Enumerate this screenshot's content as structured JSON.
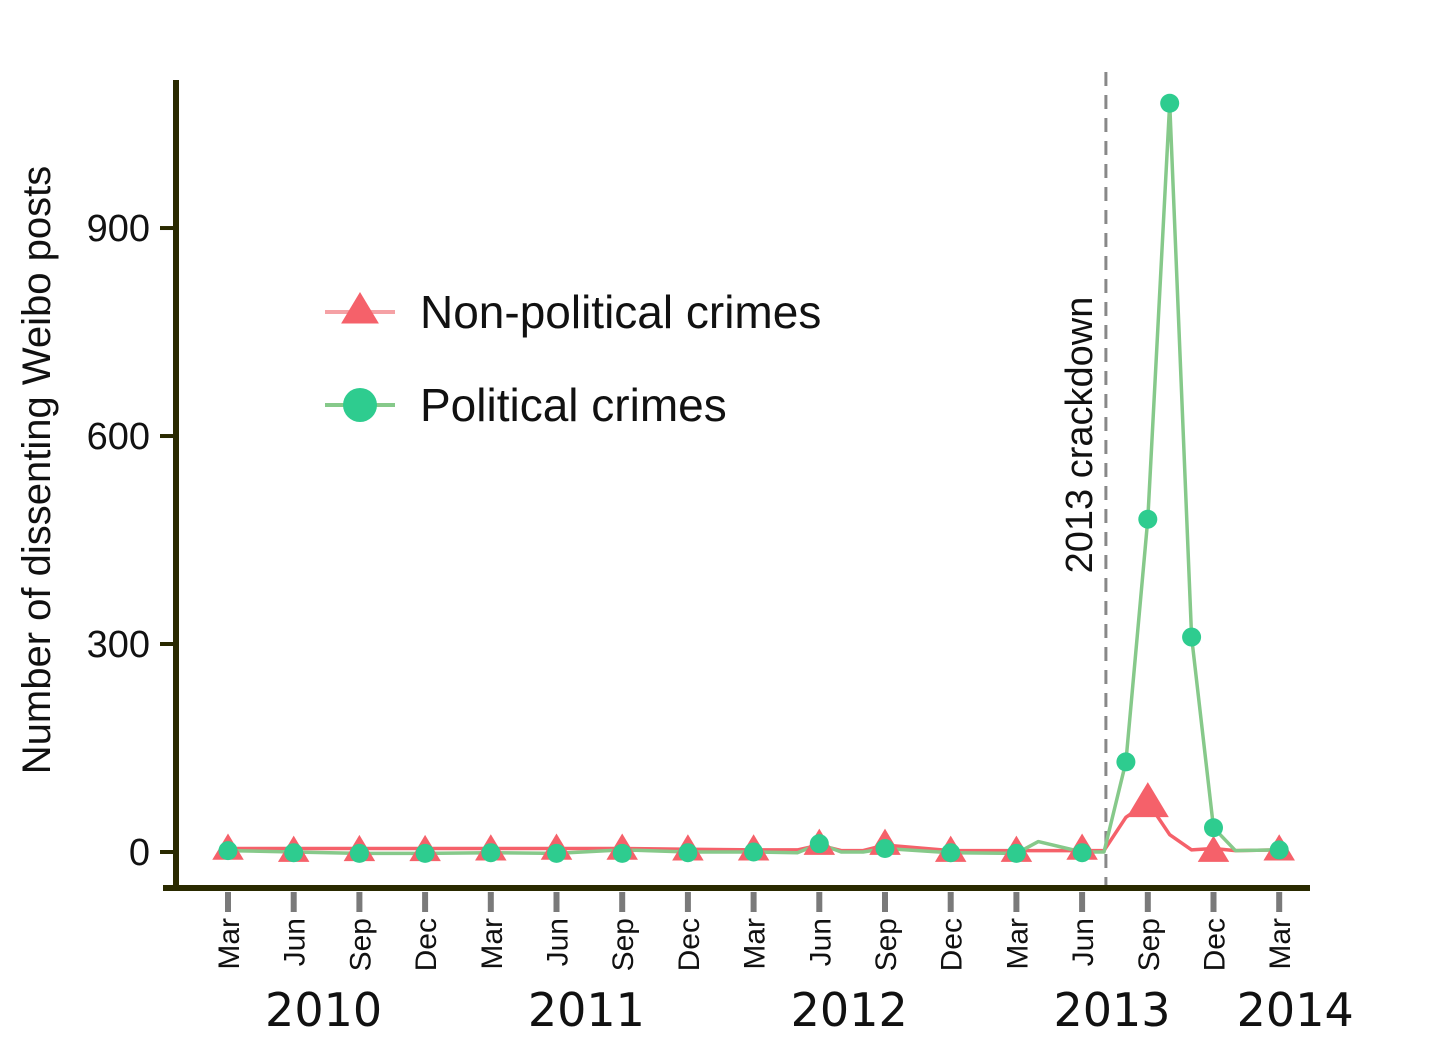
{
  "chart_data": {
    "type": "line",
    "ylabel": "Number of dissenting Weibo posts",
    "yticks": [
      0,
      300,
      600,
      900
    ],
    "ylim": [
      -50,
      1120
    ],
    "month_ticks": [
      "Mar",
      "Jun",
      "Sep",
      "Dec",
      "Mar",
      "Jun",
      "Sep",
      "Dec",
      "Mar",
      "Jun",
      "Sep",
      "Dec",
      "Mar",
      "Jun",
      "Sep",
      "Dec",
      "Mar"
    ],
    "year_labels": [
      "2010",
      "2011",
      "2012",
      "2013",
      "2014"
    ],
    "annotation": {
      "label": "2013 crackdown",
      "x": "2013-08"
    },
    "legend_position": "top-left",
    "series": [
      {
        "name": "Non-political crimes",
        "color": "#F5616A",
        "marker": "triangle",
        "x": [
          "2010-03",
          "2010-06",
          "2010-09",
          "2010-12",
          "2011-03",
          "2011-06",
          "2011-09",
          "2011-12",
          "2012-03",
          "2012-05",
          "2012-06",
          "2012-07",
          "2012-08",
          "2012-09",
          "2012-12",
          "2013-03",
          "2013-04",
          "2013-06",
          "2013-07",
          "2013-08",
          "2013-09",
          "2013-10",
          "2013-11",
          "2013-12",
          "2014-01",
          "2014-03"
        ],
        "y": [
          5,
          5,
          5,
          5,
          5,
          5,
          5,
          4,
          3,
          3,
          10,
          2,
          2,
          10,
          2,
          2,
          2,
          2,
          2,
          50,
          72,
          25,
          3,
          5,
          2,
          3
        ],
        "marker_x": [
          "2010-03",
          "2010-06",
          "2010-09",
          "2010-12",
          "2011-03",
          "2011-06",
          "2011-09",
          "2011-12",
          "2012-03",
          "2012-06",
          "2012-09",
          "2012-12",
          "2013-03",
          "2013-06",
          "2013-09",
          "2013-12",
          "2014-03"
        ],
        "marker_y": [
          5,
          2,
          3,
          3,
          4,
          5,
          5,
          4,
          4,
          12,
          12,
          2,
          2,
          5,
          72,
          2,
          4
        ]
      },
      {
        "name": "Political crimes",
        "color": "#2ECC8F",
        "line_color": "#86C98A",
        "marker": "circle",
        "x": [
          "2010-03",
          "2010-06",
          "2010-09",
          "2010-12",
          "2011-03",
          "2011-06",
          "2011-09",
          "2011-12",
          "2012-03",
          "2012-05",
          "2012-06",
          "2012-07",
          "2012-08",
          "2012-09",
          "2012-12",
          "2013-03",
          "2013-04",
          "2013-06",
          "2013-07",
          "2013-08",
          "2013-09",
          "2013-10",
          "2013-11",
          "2013-12",
          "2014-01",
          "2014-03"
        ],
        "y": [
          2,
          0,
          -2,
          -2,
          -1,
          -2,
          3,
          0,
          0,
          -1,
          12,
          0,
          0,
          5,
          -1,
          -2,
          15,
          0,
          0,
          130,
          480,
          1080,
          310,
          35,
          2,
          3
        ],
        "marker_x": [
          "2010-03",
          "2010-06",
          "2010-09",
          "2010-12",
          "2011-03",
          "2011-06",
          "2011-09",
          "2011-12",
          "2012-03",
          "2012-06",
          "2012-09",
          "2012-12",
          "2013-03",
          "2013-06",
          "2013-08",
          "2013-09",
          "2013-10",
          "2013-11",
          "2013-12",
          "2014-03"
        ],
        "marker_y": [
          2,
          -1,
          -2,
          -2,
          -1,
          -2,
          -2,
          -1,
          0,
          12,
          5,
          -1,
          -2,
          -1,
          130,
          480,
          1080,
          310,
          35,
          3
        ]
      }
    ]
  }
}
